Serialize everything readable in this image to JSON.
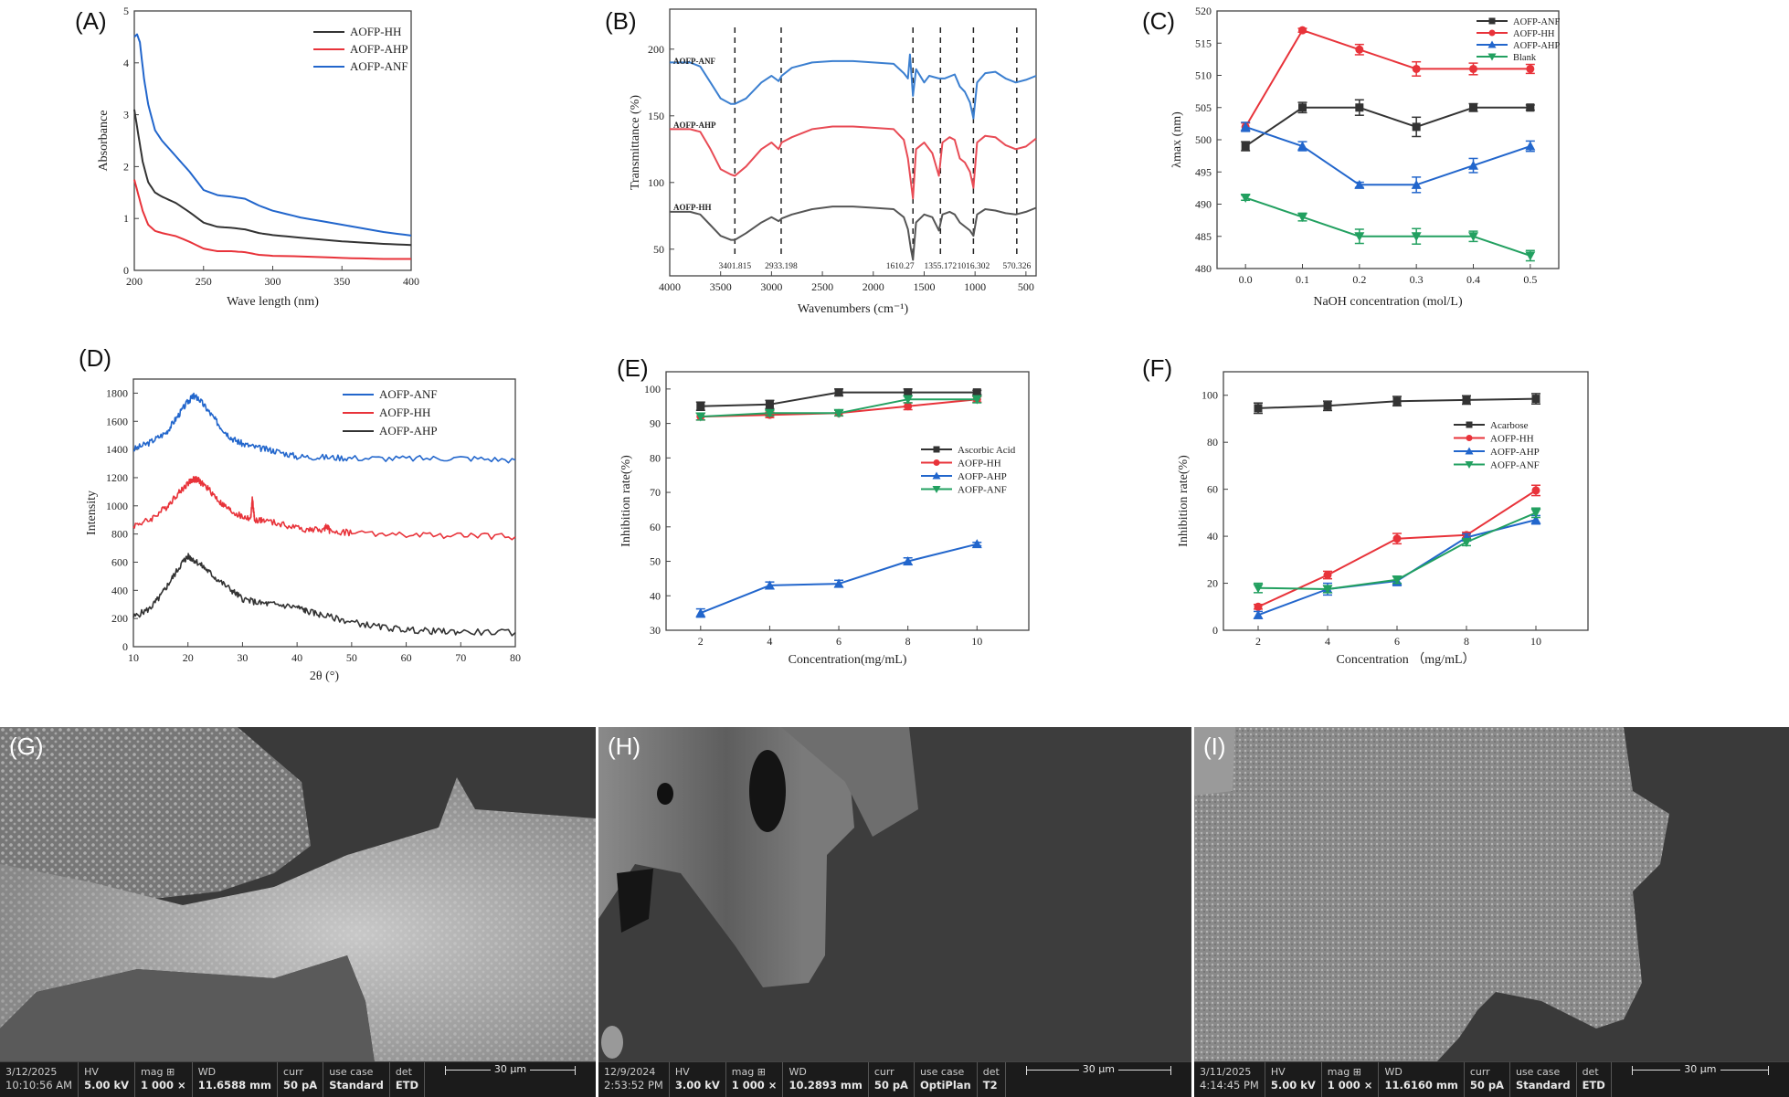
{
  "panel_labels": {
    "A": "(A)",
    "B": "(B)",
    "C": "(C)",
    "D": "(D)",
    "E": "(E)",
    "F": "(F)",
    "G": "(G)",
    "H": "(H)",
    "I": "(I)"
  },
  "chart_data": [
    {
      "id": "A",
      "type": "line",
      "title": "",
      "xlabel": "Wave length (nm)",
      "ylabel": "Absorbance",
      "xlim": [
        200,
        400
      ],
      "ylim": [
        0,
        5
      ],
      "xticks": [
        200,
        250,
        300,
        350,
        400
      ],
      "yticks": [
        0,
        1,
        2,
        3,
        4,
        5
      ],
      "legend": "top-right",
      "series": [
        {
          "name": "AOFP-HH",
          "color": "#333333",
          "x": [
            200,
            203,
            206,
            210,
            215,
            220,
            230,
            240,
            250,
            260,
            270,
            280,
            290,
            300,
            320,
            350,
            380,
            400
          ],
          "y": [
            3.1,
            2.6,
            2.1,
            1.7,
            1.5,
            1.42,
            1.3,
            1.12,
            0.92,
            0.84,
            0.82,
            0.79,
            0.72,
            0.68,
            0.63,
            0.56,
            0.51,
            0.49
          ]
        },
        {
          "name": "AOFP-AHP",
          "color": "#e8333a",
          "x": [
            200,
            203,
            206,
            210,
            215,
            220,
            230,
            240,
            250,
            260,
            270,
            280,
            290,
            300,
            320,
            350,
            380,
            400
          ],
          "y": [
            1.75,
            1.45,
            1.15,
            0.88,
            0.76,
            0.72,
            0.66,
            0.55,
            0.42,
            0.37,
            0.37,
            0.35,
            0.3,
            0.28,
            0.27,
            0.24,
            0.22,
            0.22
          ]
        },
        {
          "name": "AOFP-ANF",
          "color": "#2266cc",
          "x": [
            200,
            202,
            204,
            207,
            210,
            215,
            220,
            230,
            240,
            250,
            260,
            270,
            280,
            290,
            300,
            320,
            350,
            380,
            400
          ],
          "y": [
            4.5,
            4.55,
            4.4,
            3.7,
            3.2,
            2.7,
            2.5,
            2.2,
            1.9,
            1.55,
            1.45,
            1.42,
            1.38,
            1.25,
            1.15,
            1.02,
            0.88,
            0.74,
            0.67
          ]
        }
      ]
    },
    {
      "id": "B",
      "type": "line",
      "title": "",
      "xlabel": "Wavenumbers (cm⁻¹)",
      "ylabel": "Transmittance (%)",
      "xlim": [
        4000,
        400
      ],
      "ylim": [
        30,
        230
      ],
      "xticks": [
        4000,
        3500,
        3000,
        2500,
        2000,
        1500,
        1000,
        500
      ],
      "yticks": [
        50,
        100,
        150,
        200
      ],
      "peak_markers": [
        "3401.815",
        "2933.198",
        "1610.27",
        "1355.172",
        "1016.302",
        "570.326"
      ],
      "peak_positions": [
        3360,
        2905,
        1610,
        1340,
        1016,
        590
      ],
      "series": [
        {
          "name": "AOFP-ANF",
          "color": "#3b7fd0",
          "x": [
            4000,
            3800,
            3700,
            3600,
            3500,
            3400,
            3360,
            3250,
            3100,
            3000,
            2930,
            2900,
            2800,
            2600,
            2400,
            2200,
            2000,
            1800,
            1700,
            1660,
            1640,
            1610,
            1580,
            1500,
            1450,
            1355,
            1300,
            1200,
            1150,
            1100,
            1050,
            1016,
            980,
            900,
            800,
            700,
            600,
            500,
            400
          ],
          "y": [
            190,
            190,
            187,
            175,
            163,
            159,
            159,
            163,
            175,
            180,
            176,
            180,
            186,
            190,
            191,
            191,
            190,
            189,
            182,
            178,
            196,
            165,
            185,
            175,
            180,
            178,
            178,
            181,
            172,
            168,
            160,
            148,
            175,
            182,
            183,
            178,
            175,
            177,
            180
          ]
        },
        {
          "name": "AOFP-AHP",
          "color": "#e84b55",
          "x": [
            4000,
            3800,
            3700,
            3600,
            3500,
            3400,
            3360,
            3250,
            3100,
            3000,
            2930,
            2900,
            2800,
            2600,
            2400,
            2200,
            2000,
            1800,
            1700,
            1660,
            1630,
            1610,
            1580,
            1500,
            1420,
            1355,
            1320,
            1250,
            1200,
            1150,
            1100,
            1050,
            1016,
            980,
            900,
            800,
            700,
            600,
            500,
            400
          ],
          "y": [
            140,
            140,
            138,
            125,
            110,
            106,
            105,
            112,
            125,
            130,
            125,
            130,
            134,
            140,
            142,
            142,
            141,
            140,
            132,
            118,
            100,
            88,
            125,
            130,
            122,
            105,
            130,
            134,
            132,
            118,
            115,
            108,
            96,
            130,
            135,
            134,
            128,
            125,
            127,
            133
          ]
        },
        {
          "name": "AOFP-HH",
          "color": "#555555",
          "x": [
            4000,
            3800,
            3700,
            3600,
            3500,
            3400,
            3360,
            3250,
            3100,
            3000,
            2930,
            2900,
            2800,
            2600,
            2400,
            2200,
            2000,
            1800,
            1700,
            1660,
            1630,
            1610,
            1580,
            1500,
            1420,
            1355,
            1320,
            1250,
            1200,
            1150,
            1100,
            1050,
            1016,
            980,
            900,
            800,
            700,
            600,
            500,
            400
          ],
          "y": [
            78,
            78,
            76,
            68,
            60,
            57,
            57,
            62,
            70,
            74,
            71,
            73,
            76,
            80,
            82,
            82,
            81,
            80,
            74,
            65,
            50,
            42,
            70,
            76,
            74,
            64,
            76,
            78,
            76,
            70,
            67,
            64,
            60,
            76,
            80,
            79,
            77,
            76,
            78,
            81
          ]
        }
      ]
    },
    {
      "id": "C",
      "type": "line",
      "title": "",
      "xlabel": "NaOH concentration (mol/L)",
      "ylabel": "λmax (nm)",
      "xlim": [
        -0.05,
        0.55
      ],
      "ylim": [
        480,
        520
      ],
      "xticks": [
        "0.0",
        "0.1",
        "0.2",
        "0.3",
        "0.4",
        "0.5"
      ],
      "yticks": [
        480,
        485,
        490,
        495,
        500,
        505,
        510,
        515,
        520
      ],
      "legend": "top-right",
      "x": [
        0.0,
        0.1,
        0.2,
        0.3,
        0.4,
        0.5
      ],
      "series": [
        {
          "name": "AOFP-ANF",
          "color": "#333333",
          "marker": "square",
          "values": [
            499,
            505,
            505,
            502,
            505,
            505
          ],
          "errors": [
            0.7,
            0.8,
            1.2,
            1.5,
            0.6,
            0.4
          ]
        },
        {
          "name": "AOFP-HH",
          "color": "#e8333a",
          "marker": "circle",
          "values": [
            502,
            517,
            514,
            511,
            511,
            511
          ],
          "errors": [
            0.6,
            0.3,
            0.8,
            1.1,
            0.9,
            0.7
          ]
        },
        {
          "name": "AOFP-AHP",
          "color": "#2266cc",
          "marker": "triangle-up",
          "values": [
            502,
            499,
            493,
            493,
            496,
            499
          ],
          "errors": [
            0.7,
            0.7,
            0.4,
            1.2,
            1.1,
            0.8
          ]
        },
        {
          "name": "Blank",
          "color": "#22a060",
          "marker": "triangle-down",
          "values": [
            491,
            488,
            485,
            485,
            485,
            482
          ],
          "errors": [
            0.4,
            0.6,
            1.1,
            1.2,
            0.8,
            0.8
          ]
        }
      ]
    },
    {
      "id": "D",
      "type": "line",
      "title": "",
      "xlabel": "2θ (°)",
      "ylabel": "Intensity",
      "xlim": [
        10,
        80
      ],
      "ylim": [
        0,
        1900
      ],
      "xticks": [
        10,
        20,
        30,
        40,
        50,
        60,
        70,
        80
      ],
      "yticks": [
        0,
        200,
        400,
        600,
        800,
        1000,
        1200,
        1400,
        1600,
        1800
      ],
      "legend": "top-right",
      "series": [
        {
          "name": "AOFP-ANF",
          "color": "#2266cc",
          "x": [
            10,
            13,
            16,
            18,
            20,
            21,
            22,
            24,
            26,
            28,
            30,
            33,
            36,
            40,
            45,
            50,
            60,
            70,
            80
          ],
          "y": [
            1400,
            1450,
            1520,
            1630,
            1740,
            1780,
            1760,
            1660,
            1560,
            1480,
            1440,
            1410,
            1390,
            1350,
            1345,
            1340,
            1335,
            1340,
            1325
          ]
        },
        {
          "name": "AOFP-HH",
          "color": "#e8333a",
          "x": [
            10,
            13,
            16,
            18,
            20,
            21,
            22,
            24,
            26,
            28,
            30,
            31.5,
            31.8,
            32.2,
            34,
            38,
            42,
            45,
            45.5,
            46,
            50,
            60,
            70,
            80
          ],
          "y": [
            860,
            900,
            990,
            1080,
            1160,
            1190,
            1180,
            1110,
            1020,
            960,
            920,
            910,
            1050,
            900,
            895,
            860,
            830,
            830,
            860,
            820,
            810,
            790,
            790,
            780
          ]
        },
        {
          "name": "AOFP-AHP",
          "color": "#333333",
          "x": [
            10,
            13,
            15,
            17,
            19,
            20,
            21,
            23,
            25,
            28,
            30,
            33,
            36,
            40,
            42,
            45,
            50,
            55,
            60,
            65,
            70,
            80
          ],
          "y": [
            210,
            270,
            360,
            480,
            600,
            640,
            620,
            560,
            490,
            400,
            340,
            310,
            300,
            280,
            250,
            220,
            175,
            140,
            120,
            110,
            105,
            100
          ]
        }
      ]
    },
    {
      "id": "E",
      "type": "line",
      "title": "",
      "xlabel": "Concentration(mg/mL)",
      "ylabel": "Inhibition rate(%)",
      "xlim": [
        1,
        11.5
      ],
      "ylim": [
        30,
        105
      ],
      "xticks": [
        2,
        4,
        6,
        8,
        10
      ],
      "yticks": [
        30,
        40,
        50,
        60,
        70,
        80,
        90,
        100
      ],
      "legend": "middle-right",
      "x": [
        2,
        4,
        6,
        8,
        10
      ],
      "series": [
        {
          "name": "Ascorbic Acid",
          "color": "#333333",
          "marker": "square",
          "values": [
            95,
            95.5,
            99,
            99,
            99
          ],
          "errors": [
            1.2,
            1.2,
            1.0,
            1.0,
            0.6
          ]
        },
        {
          "name": "AOFP-HH",
          "color": "#e8333a",
          "marker": "circle",
          "values": [
            92,
            92.5,
            93,
            95,
            97
          ],
          "errors": [
            1.0,
            0.8,
            0.8,
            1.0,
            0.8
          ]
        },
        {
          "name": "AOFP-AHP",
          "color": "#2266cc",
          "marker": "triangle-up",
          "values": [
            35,
            43,
            43.5,
            50,
            55
          ],
          "errors": [
            1.2,
            1.0,
            1.0,
            1.0,
            0.5
          ]
        },
        {
          "name": "AOFP-ANF",
          "color": "#22a060",
          "marker": "triangle-down",
          "values": [
            92,
            93,
            93,
            97,
            97
          ],
          "errors": [
            1.0,
            0.8,
            0.8,
            1.0,
            1.0
          ]
        }
      ]
    },
    {
      "id": "F",
      "type": "line",
      "title": "",
      "xlabel": "Concentration （mg/mL）",
      "ylabel": "Inhibition rate(%)",
      "xlim": [
        1,
        11.5
      ],
      "ylim": [
        0,
        110
      ],
      "xticks": [
        2,
        4,
        6,
        8,
        10
      ],
      "yticks": [
        0,
        20,
        40,
        60,
        80,
        100
      ],
      "legend": "top-right",
      "x": [
        2,
        4,
        6,
        8,
        10
      ],
      "series": [
        {
          "name": "Acarbose",
          "color": "#333333",
          "marker": "square",
          "values": [
            94.5,
            95.5,
            97.5,
            98,
            98.5
          ],
          "errors": [
            2.2,
            2.0,
            2.0,
            1.8,
            2.2
          ]
        },
        {
          "name": "AOFP-HH",
          "color": "#e8333a",
          "marker": "circle",
          "values": [
            10,
            23.5,
            39,
            40.5,
            59.5
          ],
          "errors": [
            1.0,
            1.6,
            2.2,
            1.2,
            2.2
          ]
        },
        {
          "name": "AOFP-AHP",
          "color": "#2266cc",
          "marker": "triangle-up",
          "values": [
            6.5,
            17.5,
            21,
            39.5,
            47
          ],
          "errors": [
            1.5,
            2.5,
            2.0,
            1.5,
            1.8
          ]
        },
        {
          "name": "AOFP-ANF",
          "color": "#22a060",
          "marker": "triangle-down",
          "values": [
            18,
            17.5,
            21.5,
            37.5,
            50
          ],
          "errors": [
            2.0,
            1.5,
            1.5,
            1.5,
            2.0
          ]
        }
      ]
    }
  ],
  "sem_panels": [
    {
      "id": "G",
      "date": "3/12/2025",
      "time": "10:10:56 AM",
      "hv_label": "HV",
      "hv": "5.00 kV",
      "mag_label": "mag ⊞",
      "mag": "1 000 ×",
      "wd_label": "WD",
      "wd": "11.6588 mm",
      "curr_label": "curr",
      "curr": "50 pA",
      "use_case_label": "use case",
      "use_case": "Standard",
      "det_label": "det",
      "det": "ETD",
      "scale": "30 µm"
    },
    {
      "id": "H",
      "date": "12/9/2024",
      "time": "2:53:52 PM",
      "hv_label": "HV",
      "hv": "3.00 kV",
      "mag_label": "mag ⊞",
      "mag": "1 000 ×",
      "wd_label": "WD",
      "wd": "10.2893 mm",
      "curr_label": "curr",
      "curr": "50 pA",
      "use_case_label": "use case",
      "use_case": "OptiPlan",
      "det_label": "det",
      "det": "T2",
      "scale": "30 µm"
    },
    {
      "id": "I",
      "date": "3/11/2025",
      "time": "4:14:45 PM",
      "hv_label": "HV",
      "hv": "5.00 kV",
      "mag_label": "mag ⊞",
      "mag": "1 000 ×",
      "wd_label": "WD",
      "wd": "11.6160 mm",
      "curr_label": "curr",
      "curr": "50 pA",
      "use_case_label": "use case",
      "use_case": "Standard",
      "det_label": "det",
      "det": "ETD",
      "scale": "30 µm"
    }
  ]
}
